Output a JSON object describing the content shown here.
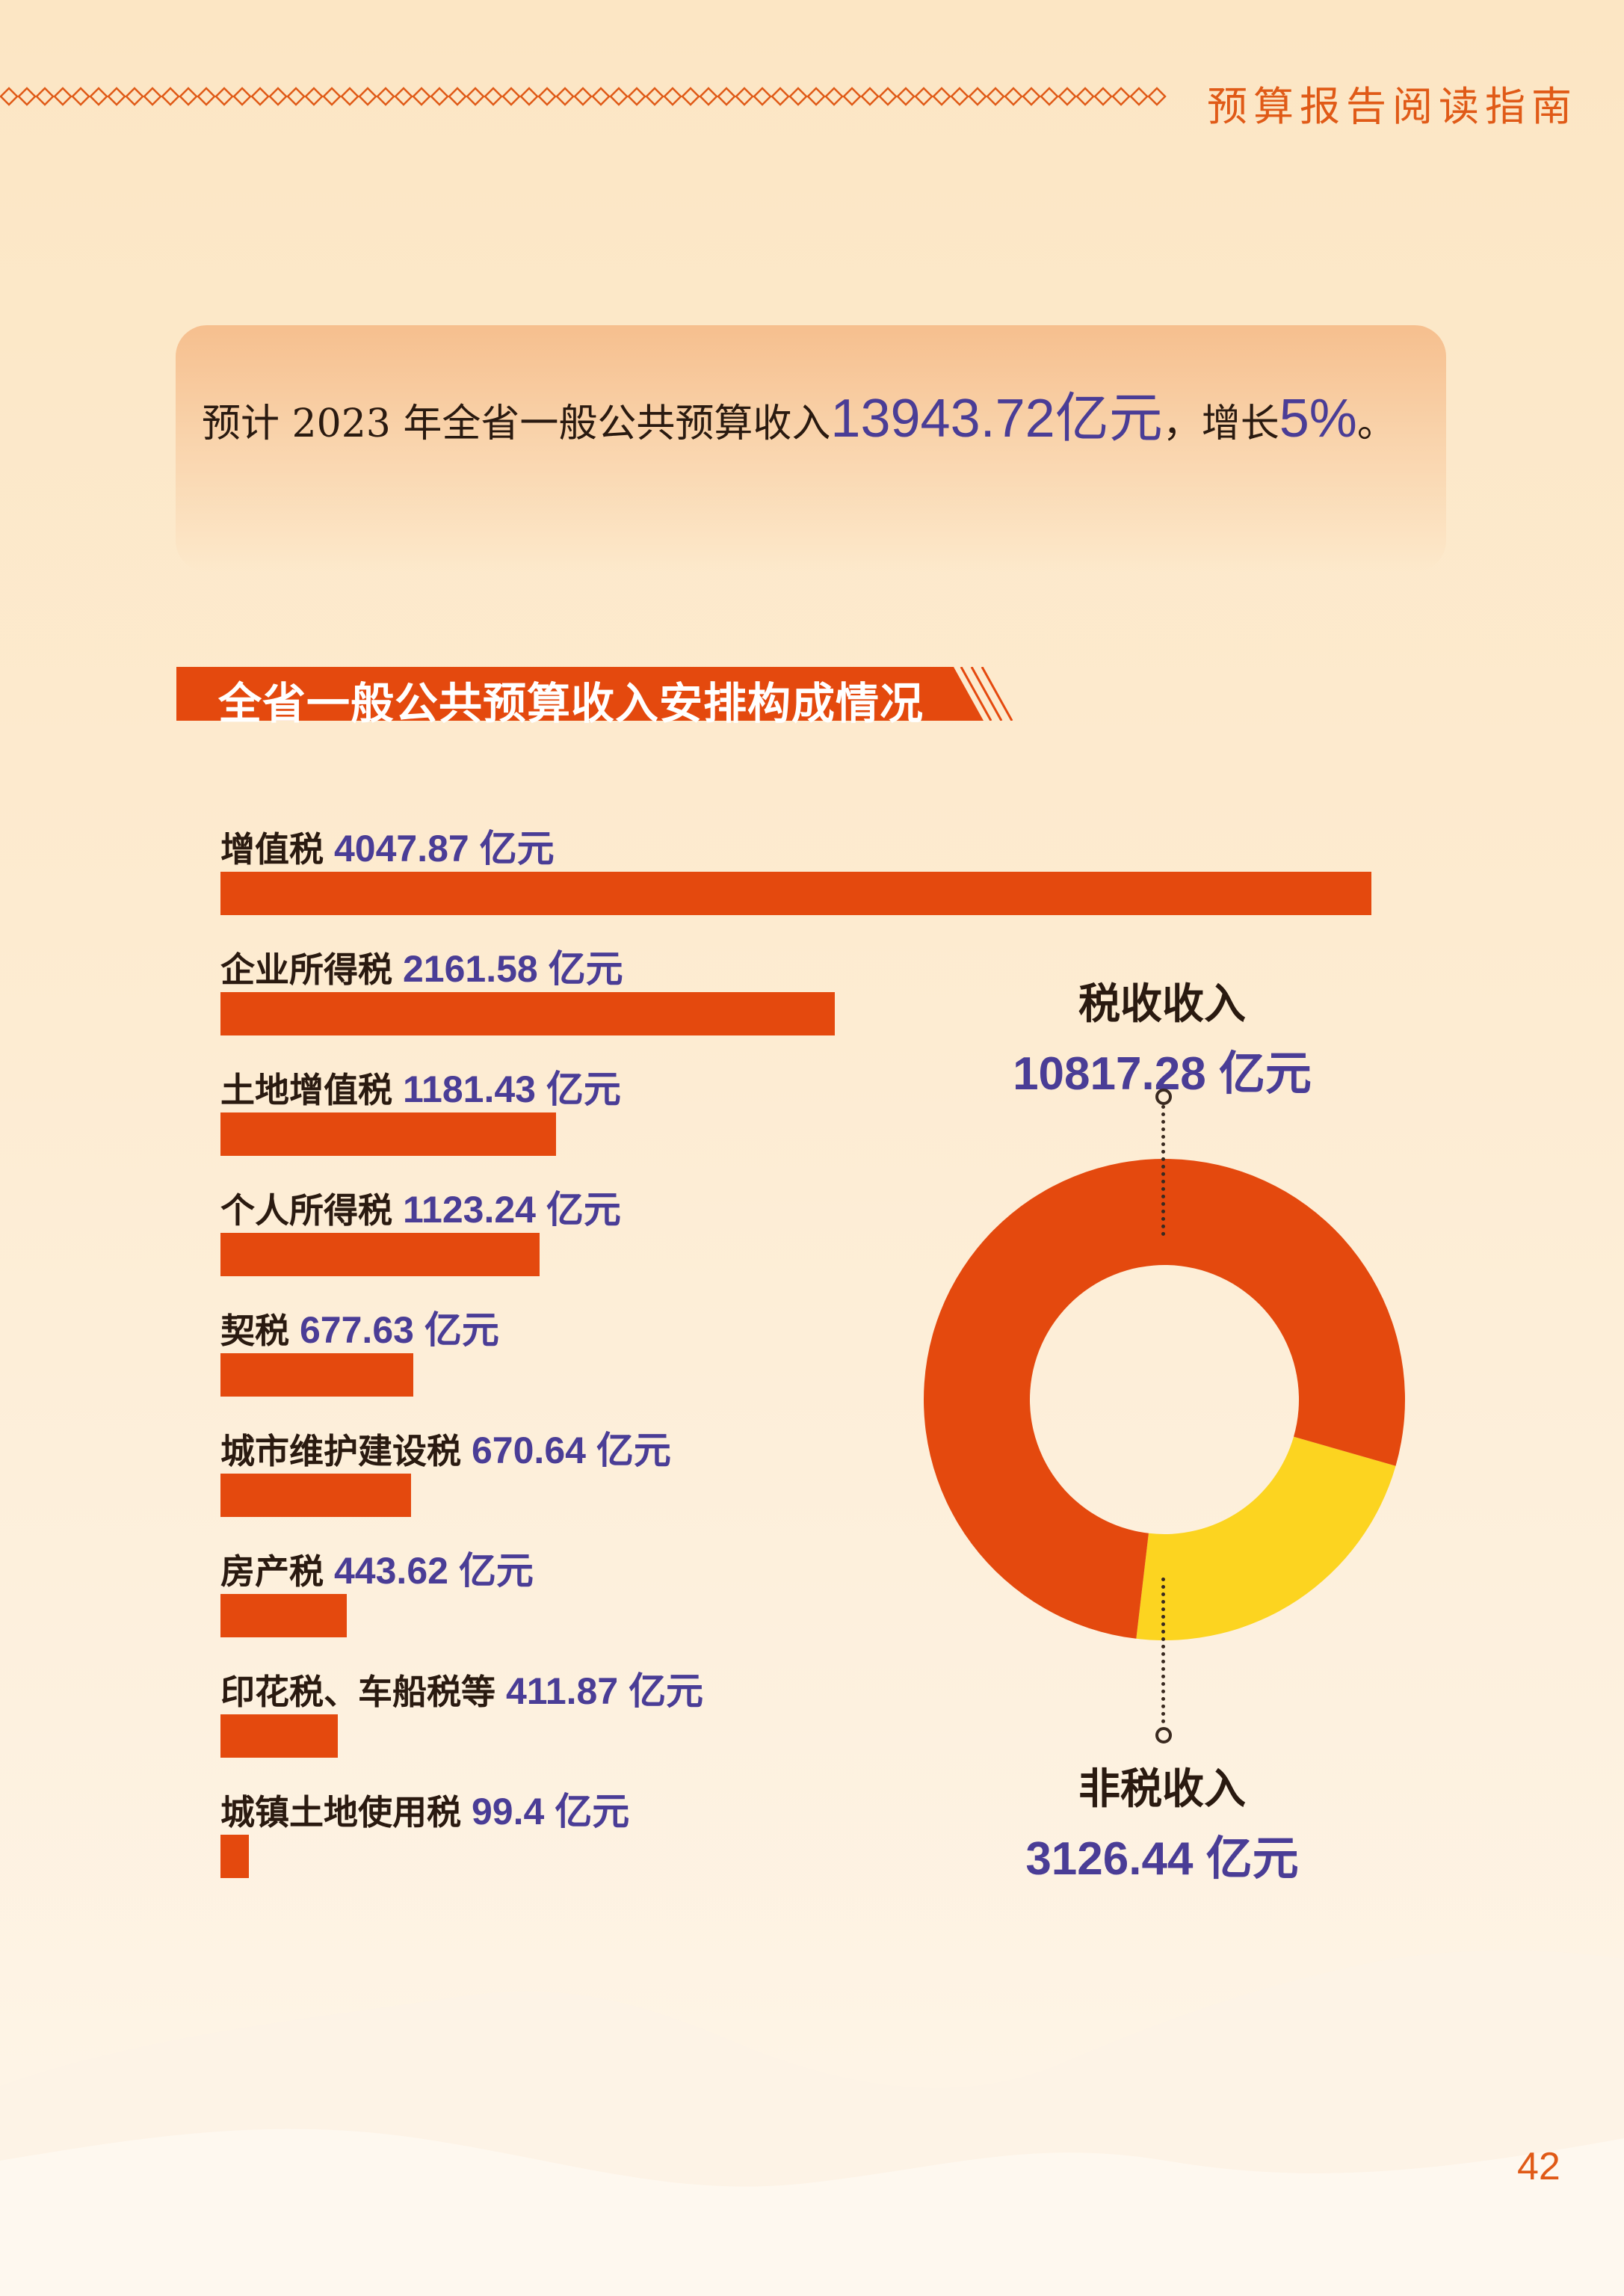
{
  "header": {
    "title": "预算报告阅读指南"
  },
  "summary": {
    "prefix": "预计 2023 年全省一般公共预算收入",
    "total": "13943.72",
    "unit": "亿元",
    "mid": "，增长",
    "growth": "5%",
    "suffix": "。"
  },
  "section": {
    "title": "全省一般公共预算收入安排构成情况"
  },
  "chart_data": [
    {
      "type": "bar",
      "orientation": "horizontal",
      "unit": "亿元",
      "categories": [
        "增值税",
        "企业所得税",
        "土地增值税",
        "个人所得税",
        "契税",
        "城市维护建设税",
        "房产税",
        "印花税、车船税等",
        "城镇土地使用税"
      ],
      "values": [
        4047.87,
        2161.58,
        1181.43,
        1123.24,
        677.63,
        670.64,
        443.62,
        411.87,
        99.4
      ],
      "value_labels": [
        "4047.87 亿元",
        "2161.58 亿元",
        "1181.43 亿元",
        "1123.24 亿元",
        "677.63 亿元",
        "670.64 亿元",
        "443.62 亿元",
        "411.87 亿元",
        "99.4 亿元"
      ],
      "color": "#e4490e"
    },
    {
      "type": "pie",
      "style": "donut",
      "slices": [
        {
          "name": "税收收入",
          "value": 10817.28,
          "label": "10817.28 亿元",
          "color": "#e4490e"
        },
        {
          "name": "非税收入",
          "value": 3126.44,
          "label": "3126.44 亿元",
          "color": "#fcd420"
        }
      ]
    }
  ],
  "page_number": "42"
}
